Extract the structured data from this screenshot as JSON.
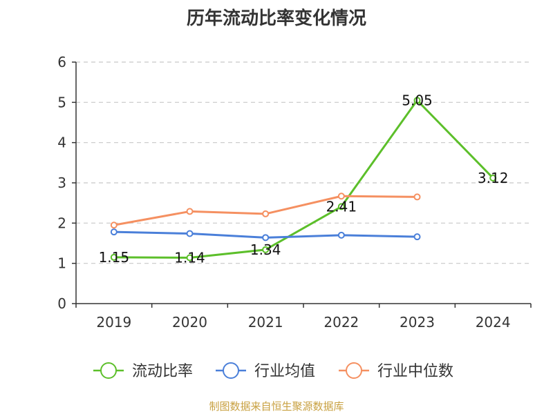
{
  "chart_data": {
    "type": "line",
    "title": "历年流动比率变化情况",
    "categories": [
      "2019",
      "2020",
      "2021",
      "2022",
      "2023",
      "2024"
    ],
    "ylim": [
      0,
      6
    ],
    "yticks": [
      0,
      1,
      2,
      3,
      4,
      5,
      6
    ],
    "grid": true,
    "legend_position": "bottom",
    "series": [
      {
        "name": "流动比率",
        "color": "#5cbf2a",
        "values": [
          1.15,
          1.14,
          1.34,
          2.41,
          5.05,
          3.12
        ],
        "show_labels": true
      },
      {
        "name": "行业均值",
        "color": "#4a7fd9",
        "values": [
          1.78,
          1.74,
          1.64,
          1.7,
          1.66,
          null
        ],
        "show_labels": false
      },
      {
        "name": "行业中位数",
        "color": "#f59061",
        "values": [
          1.95,
          2.29,
          2.23,
          2.67,
          2.65,
          null
        ],
        "show_labels": false
      }
    ]
  },
  "footer": {
    "source": "制图数据来自恒生聚源数据库"
  }
}
